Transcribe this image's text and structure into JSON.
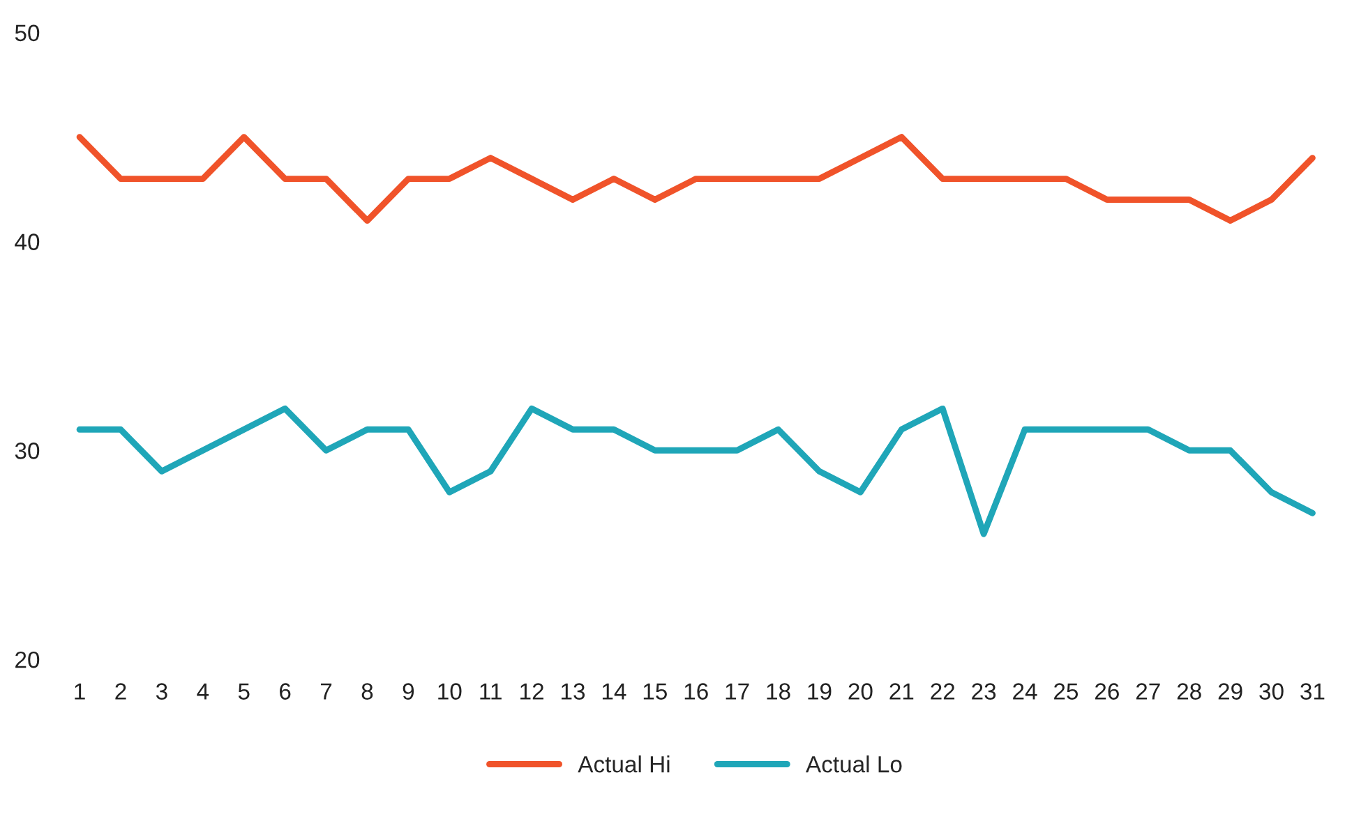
{
  "chart_data": {
    "type": "line",
    "categories": [
      "1",
      "2",
      "3",
      "4",
      "5",
      "6",
      "7",
      "8",
      "9",
      "10",
      "11",
      "12",
      "13",
      "14",
      "15",
      "16",
      "17",
      "18",
      "19",
      "20",
      "21",
      "22",
      "23",
      "24",
      "25",
      "26",
      "27",
      "28",
      "29",
      "30",
      "31"
    ],
    "series": [
      {
        "name": "Actual Hi",
        "color": "#f0532a",
        "values": [
          45,
          43,
          43,
          43,
          45,
          43,
          43,
          41,
          43,
          43,
          44,
          43,
          42,
          43,
          42,
          43,
          43,
          43,
          43,
          44,
          45,
          43,
          43,
          43,
          43,
          42,
          42,
          42,
          41,
          42,
          44
        ]
      },
      {
        "name": "Actual Lo",
        "color": "#1fa6b8",
        "values": [
          31,
          31,
          29,
          30,
          31,
          32,
          30,
          31,
          31,
          28,
          29,
          32,
          31,
          31,
          30,
          30,
          30,
          31,
          29,
          28,
          31,
          32,
          26,
          31,
          31,
          31,
          31,
          30,
          30,
          28,
          27
        ]
      }
    ],
    "ylim": [
      20,
      50
    ],
    "yticks": [
      20,
      30,
      40,
      50
    ],
    "grid": false,
    "legend": "bottom",
    "marker": "none",
    "line_style": "solid"
  }
}
